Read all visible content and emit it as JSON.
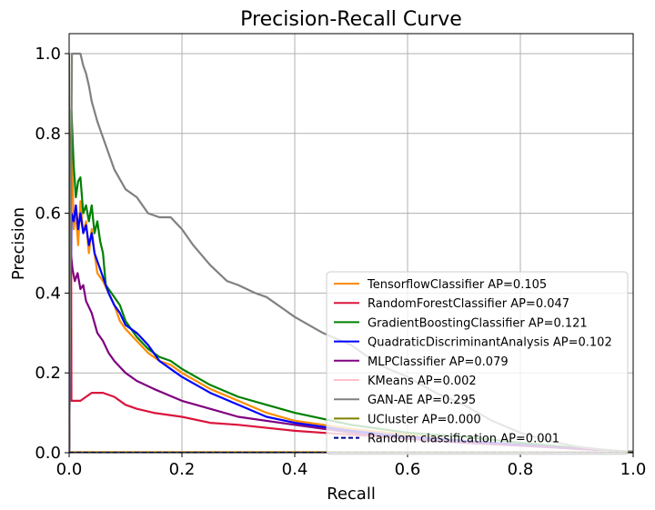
{
  "chart_data": {
    "type": "line",
    "title": "Precision-Recall Curve",
    "xlabel": "Recall",
    "ylabel": "Precision",
    "xlim": [
      0.0,
      1.0
    ],
    "ylim": [
      0.0,
      1.05
    ],
    "grid": true,
    "legend_position": "lower-right",
    "xticks": [
      {
        "value": 0.0,
        "label": "0.0"
      },
      {
        "value": 0.2,
        "label": "0.2"
      },
      {
        "value": 0.4,
        "label": "0.4"
      },
      {
        "value": 0.6,
        "label": "0.6"
      },
      {
        "value": 0.8,
        "label": "0.8"
      },
      {
        "value": 1.0,
        "label": "1.0"
      }
    ],
    "yticks": [
      {
        "value": 0.0,
        "label": "0.0"
      },
      {
        "value": 0.2,
        "label": "0.2"
      },
      {
        "value": 0.4,
        "label": "0.4"
      },
      {
        "value": 0.6,
        "label": "0.6"
      },
      {
        "value": 0.8,
        "label": "0.8"
      },
      {
        "value": 1.0,
        "label": "1.0"
      }
    ],
    "series": [
      {
        "name": "TensorflowClassifier AP=0.105",
        "color": "#ff8c00",
        "dash": "solid",
        "x": [
          0.0,
          0.004,
          0.008,
          0.012,
          0.016,
          0.02,
          0.025,
          0.03,
          0.035,
          0.04,
          0.045,
          0.05,
          0.06,
          0.07,
          0.08,
          0.09,
          0.1,
          0.12,
          0.14,
          0.16,
          0.18,
          0.2,
          0.25,
          0.3,
          0.35,
          0.4,
          0.5,
          0.6,
          0.7,
          0.8,
          0.9,
          1.0
        ],
        "y": [
          0.0,
          0.82,
          0.56,
          0.6,
          0.52,
          0.63,
          0.55,
          0.58,
          0.5,
          0.56,
          0.5,
          0.45,
          0.43,
          0.4,
          0.37,
          0.33,
          0.31,
          0.28,
          0.25,
          0.23,
          0.22,
          0.2,
          0.16,
          0.13,
          0.1,
          0.08,
          0.06,
          0.045,
          0.03,
          0.02,
          0.01,
          0.002
        ]
      },
      {
        "name": "RandomForestClassifier AP=0.047",
        "color": "#dc143c",
        "dash": "solid",
        "x": [
          0.0,
          0.003,
          0.004,
          0.006,
          0.01,
          0.02,
          0.03,
          0.04,
          0.06,
          0.08,
          0.1,
          0.12,
          0.15,
          0.2,
          0.25,
          0.3,
          0.4,
          0.5,
          0.6,
          0.7,
          0.8,
          0.9,
          1.0
        ],
        "y": [
          0.0,
          0.8,
          0.13,
          0.13,
          0.13,
          0.13,
          0.14,
          0.15,
          0.15,
          0.14,
          0.12,
          0.11,
          0.1,
          0.09,
          0.075,
          0.07,
          0.055,
          0.045,
          0.035,
          0.025,
          0.018,
          0.01,
          0.002
        ]
      },
      {
        "name": "GradientBoostingClassifier AP=0.121",
        "color": "#008000",
        "dash": "solid",
        "x": [
          0.0,
          0.004,
          0.008,
          0.012,
          0.016,
          0.02,
          0.025,
          0.03,
          0.035,
          0.04,
          0.045,
          0.05,
          0.055,
          0.06,
          0.065,
          0.07,
          0.08,
          0.09,
          0.1,
          0.12,
          0.14,
          0.16,
          0.18,
          0.2,
          0.25,
          0.3,
          0.35,
          0.4,
          0.5,
          0.6,
          0.7,
          0.8,
          0.9,
          1.0
        ],
        "y": [
          0.0,
          0.86,
          0.72,
          0.64,
          0.68,
          0.69,
          0.6,
          0.62,
          0.58,
          0.62,
          0.55,
          0.58,
          0.53,
          0.5,
          0.42,
          0.41,
          0.39,
          0.37,
          0.33,
          0.29,
          0.26,
          0.24,
          0.23,
          0.21,
          0.17,
          0.14,
          0.12,
          0.1,
          0.07,
          0.05,
          0.04,
          0.025,
          0.012,
          0.002
        ]
      },
      {
        "name": "QuadraticDiscriminantAnalysis AP=0.102",
        "color": "#0000ff",
        "dash": "solid",
        "x": [
          0.0,
          0.004,
          0.008,
          0.012,
          0.016,
          0.02,
          0.025,
          0.03,
          0.035,
          0.04,
          0.045,
          0.05,
          0.06,
          0.07,
          0.08,
          0.09,
          0.1,
          0.12,
          0.14,
          0.16,
          0.18,
          0.2,
          0.25,
          0.3,
          0.35,
          0.4,
          0.5,
          0.6,
          0.7,
          0.8,
          0.9,
          1.0
        ],
        "y": [
          0.0,
          0.6,
          0.58,
          0.62,
          0.56,
          0.6,
          0.55,
          0.57,
          0.52,
          0.55,
          0.5,
          0.48,
          0.44,
          0.4,
          0.37,
          0.35,
          0.32,
          0.3,
          0.27,
          0.23,
          0.21,
          0.19,
          0.15,
          0.12,
          0.09,
          0.075,
          0.055,
          0.04,
          0.03,
          0.02,
          0.01,
          0.002
        ]
      },
      {
        "name": "MLPClassifier AP=0.079",
        "color": "#800080",
        "dash": "solid",
        "x": [
          0.0,
          0.003,
          0.006,
          0.01,
          0.015,
          0.02,
          0.025,
          0.03,
          0.04,
          0.05,
          0.06,
          0.07,
          0.08,
          0.1,
          0.12,
          0.15,
          0.2,
          0.25,
          0.3,
          0.4,
          0.5,
          0.6,
          0.7,
          0.8,
          0.9,
          1.0
        ],
        "y": [
          0.0,
          0.5,
          0.46,
          0.43,
          0.45,
          0.41,
          0.42,
          0.38,
          0.35,
          0.3,
          0.28,
          0.25,
          0.23,
          0.2,
          0.18,
          0.16,
          0.13,
          0.11,
          0.09,
          0.07,
          0.05,
          0.035,
          0.025,
          0.018,
          0.01,
          0.002
        ]
      },
      {
        "name": "KMeans AP=0.002",
        "color": "#ffc0cb",
        "dash": "solid",
        "x": [
          0.0,
          1.0
        ],
        "y": [
          0.002,
          0.002
        ]
      },
      {
        "name": "GAN-AE AP=0.295",
        "color": "#808080",
        "dash": "solid",
        "x": [
          0.0,
          0.005,
          0.01,
          0.02,
          0.025,
          0.03,
          0.035,
          0.04,
          0.05,
          0.06,
          0.07,
          0.08,
          0.1,
          0.12,
          0.14,
          0.16,
          0.18,
          0.2,
          0.22,
          0.25,
          0.28,
          0.3,
          0.33,
          0.35,
          0.38,
          0.4,
          0.45,
          0.5,
          0.55,
          0.6,
          0.65,
          0.7,
          0.75,
          0.8,
          0.85,
          0.9,
          0.95,
          1.0
        ],
        "y": [
          0.0,
          1.0,
          1.0,
          1.0,
          0.97,
          0.95,
          0.92,
          0.88,
          0.83,
          0.79,
          0.75,
          0.71,
          0.66,
          0.64,
          0.6,
          0.59,
          0.59,
          0.56,
          0.52,
          0.47,
          0.43,
          0.42,
          0.4,
          0.39,
          0.36,
          0.34,
          0.3,
          0.27,
          0.22,
          0.19,
          0.15,
          0.12,
          0.08,
          0.05,
          0.03,
          0.015,
          0.007,
          0.002
        ]
      },
      {
        "name": "UCluster AP=0.000",
        "color": "#808000",
        "dash": "solid",
        "x": [
          0.0,
          0.0,
          0.0,
          1.0
        ],
        "y": [
          1.0,
          0.0,
          0.001,
          0.001
        ]
      },
      {
        "name": "Random classification AP=0.001",
        "color": "#00008b",
        "dash": "dashed",
        "x": [
          0.0,
          1.0
        ],
        "y": [
          0.001,
          0.001
        ]
      }
    ]
  }
}
